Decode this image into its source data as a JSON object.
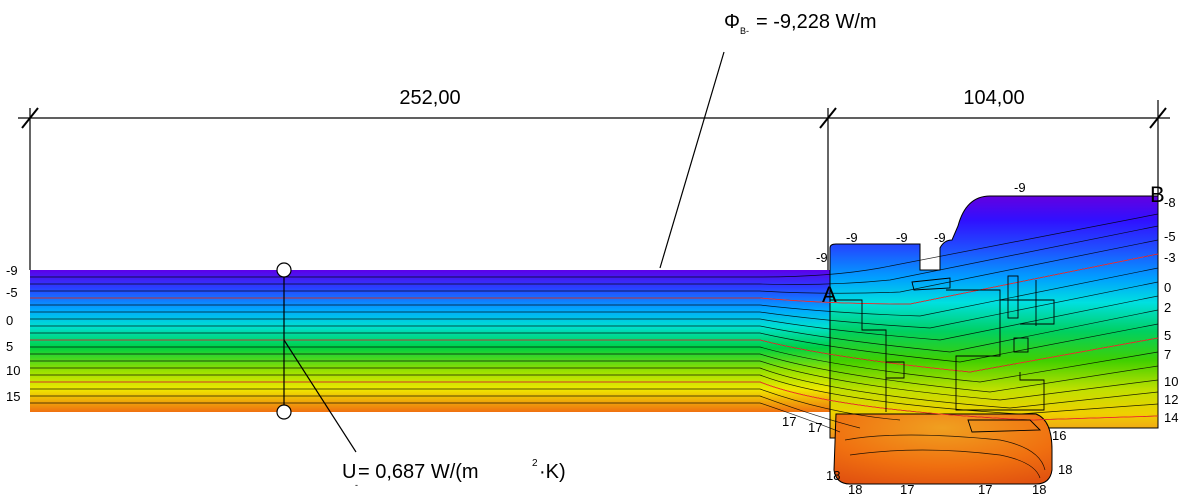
{
  "dimensions": {
    "left_width": "252,00",
    "right_width": "104,00"
  },
  "flux": {
    "symbol": "Φ",
    "subscript": "B-",
    "value_text": "= -9,228 W/m"
  },
  "u_value": {
    "symbol": "U",
    "subscript": "-",
    "text_before_sq": "= 0,687 W/(m",
    "superscript": "2",
    "text_after_sq": "·K)"
  },
  "points": {
    "a": "A",
    "b": "B"
  },
  "isotherm_labels": {
    "left_scale": [
      "-9",
      "-5",
      "0",
      "5",
      "10",
      "15"
    ],
    "right_scale": [
      "-8",
      "-5",
      "-3",
      "0",
      "2",
      "5",
      "7",
      "10",
      "12",
      "14"
    ],
    "top": [
      "-9",
      "-9",
      "-9",
      "-9",
      "-9"
    ],
    "bottom_left": [
      "17",
      "17"
    ],
    "bottom": [
      "18",
      "17",
      "17",
      "18"
    ],
    "side": [
      "18",
      "16",
      "18"
    ]
  },
  "colors": {
    "cold": "#5a00e0",
    "cool": "#00c8ff",
    "mid": "#00d000",
    "warm": "#f0f000",
    "hot": "#f07010"
  }
}
